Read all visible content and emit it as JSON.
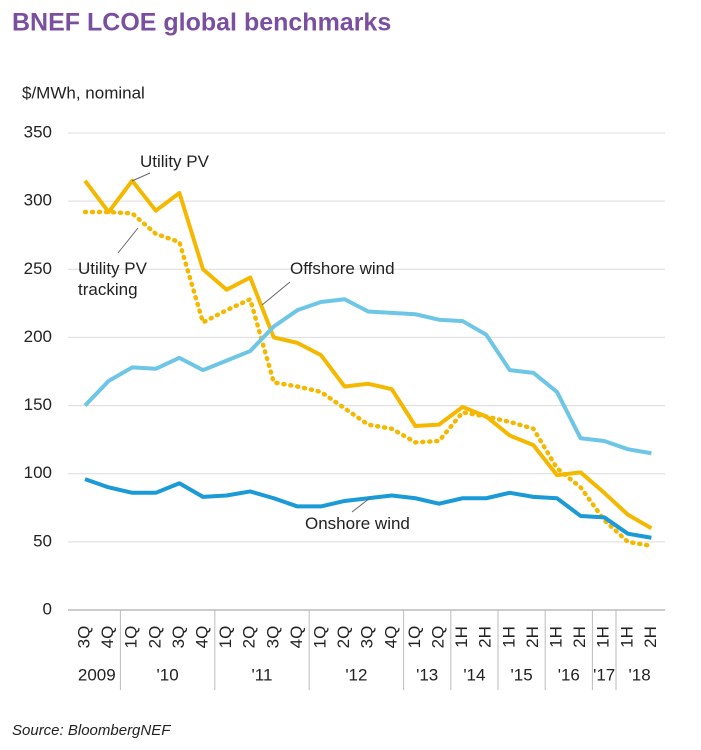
{
  "chart_data": {
    "type": "line",
    "title": "BNEF LCOE global benchmarks",
    "y_label": "$/MWh, nominal",
    "source": "Source: BloombergNEF",
    "categories": [
      "3Q",
      "4Q",
      "1Q",
      "2Q",
      "3Q",
      "4Q",
      "1Q",
      "2Q",
      "3Q",
      "4Q",
      "1Q",
      "2Q",
      "3Q",
      "4Q",
      "1Q",
      "2Q",
      "1H",
      "2H",
      "1H",
      "2H",
      "1H",
      "2H",
      "1H",
      "1H",
      "2H"
    ],
    "years": [
      "2009",
      null,
      "'10",
      null,
      null,
      null,
      "'11",
      null,
      null,
      null,
      "'12",
      null,
      null,
      null,
      "'13",
      null,
      "'14",
      null,
      "'15",
      null,
      "'16",
      null,
      "'17",
      "'18",
      null
    ],
    "ylim": [
      0,
      350
    ],
    "yticks": [
      0,
      50,
      100,
      150,
      200,
      250,
      300,
      350
    ],
    "grid": true,
    "series": [
      {
        "name": "Utility PV",
        "color": "#f5b800",
        "style": "solid",
        "values": [
          315,
          292,
          315,
          293,
          306,
          250,
          235,
          244,
          200,
          196,
          187,
          164,
          166,
          162,
          135,
          136,
          149,
          142,
          128,
          121,
          99,
          101,
          86,
          70,
          60
        ]
      },
      {
        "name": "Utility PV tracking",
        "color": "#f5b800",
        "style": "dotted",
        "values": [
          292,
          292,
          291,
          276,
          270,
          211,
          220,
          228,
          167,
          164,
          160,
          148,
          136,
          133,
          123,
          124,
          145,
          142,
          138,
          133,
          104,
          90,
          66,
          50,
          47
        ]
      },
      {
        "name": "Offshore wind",
        "color": "#6ec6e6",
        "style": "solid",
        "values": [
          150,
          168,
          178,
          177,
          185,
          176,
          183,
          190,
          208,
          220,
          226,
          228,
          219,
          218,
          217,
          213,
          212,
          202,
          176,
          174,
          160,
          126,
          124,
          118,
          115
        ]
      },
      {
        "name": "Onshore wind",
        "color": "#1a9ad6",
        "style": "solid",
        "values": [
          96,
          90,
          86,
          86,
          93,
          83,
          84,
          87,
          82,
          76,
          76,
          80,
          82,
          84,
          82,
          78,
          82,
          82,
          86,
          83,
          82,
          69,
          68,
          56,
          53
        ]
      }
    ]
  }
}
